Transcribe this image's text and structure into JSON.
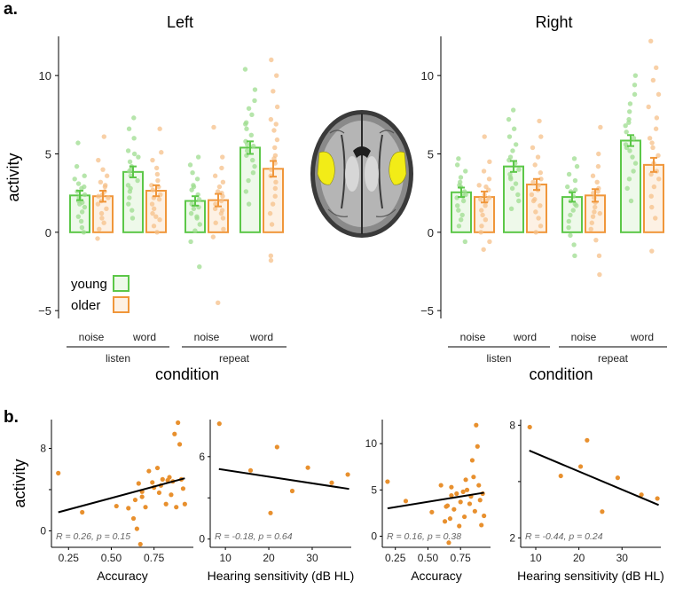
{
  "figure": {
    "panel_a_label": "a.",
    "panel_b_label": "b.",
    "brain_caption": ""
  },
  "colors": {
    "young": "#5cc748",
    "older": "#f0963a",
    "young_fill": "#eef9ea",
    "older_fill": "#fdf1e4",
    "young_dot": "#9ddc8f",
    "older_dot": "#f5c08a",
    "scatter_dot": "#e8902e",
    "roi": "#f2ec17"
  },
  "chart_data": [
    {
      "id": "left",
      "type": "bar",
      "title": "Left",
      "ylabel": "activity",
      "xlabel": "condition",
      "ylim": [
        -5.5,
        12.5
      ],
      "yticks": [
        -5,
        0,
        5,
        10
      ],
      "categories": [
        "noise",
        "word",
        "noise",
        "word"
      ],
      "groups": [
        {
          "label": "listen",
          "span": [
            0,
            1
          ]
        },
        {
          "label": "repeat",
          "span": [
            2,
            3
          ]
        }
      ],
      "legend": {
        "position": "bottom-left",
        "entries": [
          "young",
          "older"
        ]
      },
      "series": [
        {
          "name": "young",
          "values": [
            2.35,
            3.85,
            2.0,
            5.4
          ],
          "errors": [
            0.3,
            0.35,
            0.3,
            0.4
          ],
          "points": [
            [
              5.7,
              4.2,
              3.6,
              3.1,
              2.8,
              2.6,
              2.4,
              2.2,
              2.0,
              1.8,
              1.6,
              1.3,
              1.0,
              0.7,
              0.3,
              3.4,
              2.9,
              1.9,
              0.0
            ],
            [
              7.3,
              6.6,
              6.0,
              5.2,
              4.8,
              4.5,
              4.2,
              3.9,
              3.6,
              3.3,
              3.0,
              2.6,
              2.2,
              1.8,
              1.4,
              0.9,
              5.0,
              4.0,
              2.8
            ],
            [
              4.8,
              4.3,
              3.8,
              3.4,
              3.0,
              2.7,
              2.4,
              2.1,
              1.8,
              1.5,
              1.2,
              0.9,
              0.5,
              0.1,
              -0.6,
              -2.2,
              2.9,
              1.6,
              1.0
            ],
            [
              10.4,
              9.1,
              8.4,
              7.9,
              7.5,
              7.0,
              6.6,
              6.2,
              5.8,
              5.5,
              5.2,
              4.9,
              4.6,
              4.2,
              3.8,
              3.3,
              2.6,
              1.8,
              6.9,
              5.6
            ]
          ]
        },
        {
          "name": "older",
          "values": [
            2.3,
            2.65,
            2.05,
            4.05
          ],
          "errors": [
            0.35,
            0.35,
            0.4,
            0.5
          ],
          "points": [
            [
              6.1,
              4.6,
              4.0,
              3.6,
              3.2,
              2.9,
              2.6,
              2.4,
              2.2,
              2.0,
              1.8,
              1.5,
              1.2,
              0.9,
              0.6,
              0.2,
              -0.4,
              3.0,
              2.3
            ],
            [
              6.6,
              5.1,
              4.6,
              4.1,
              3.7,
              3.3,
              3.0,
              2.7,
              2.4,
              2.1,
              1.8,
              1.5,
              1.2,
              0.8,
              0.4,
              0.0,
              2.9,
              2.2,
              1.0
            ],
            [
              6.7,
              4.8,
              4.1,
              3.6,
              3.2,
              2.9,
              2.6,
              2.3,
              2.0,
              1.8,
              1.5,
              1.2,
              0.9,
              0.6,
              0.2,
              -0.3,
              -4.5,
              2.5,
              1.4
            ],
            [
              11.0,
              10.0,
              9.0,
              8.0,
              7.2,
              6.5,
              5.9,
              5.4,
              4.9,
              4.4,
              4.0,
              3.6,
              3.2,
              2.8,
              2.3,
              1.8,
              1.2,
              0.5,
              -1.5,
              -1.8,
              6.9,
              4.7
            ]
          ]
        }
      ]
    },
    {
      "id": "right",
      "type": "bar",
      "title": "Right",
      "ylabel": "",
      "xlabel": "condition",
      "ylim": [
        -5.5,
        12.5
      ],
      "yticks": [
        -5,
        0,
        5,
        10
      ],
      "categories": [
        "noise",
        "word",
        "noise",
        "word"
      ],
      "groups": [
        {
          "label": "listen",
          "span": [
            0,
            1
          ]
        },
        {
          "label": "repeat",
          "span": [
            2,
            3
          ]
        }
      ],
      "series": [
        {
          "name": "young",
          "values": [
            2.55,
            4.2,
            2.25,
            5.85
          ],
          "errors": [
            0.3,
            0.35,
            0.3,
            0.35
          ],
          "points": [
            [
              4.7,
              4.3,
              3.9,
              3.5,
              3.2,
              2.9,
              2.6,
              2.4,
              2.2,
              2.0,
              1.7,
              1.4,
              1.1,
              0.8,
              0.4,
              -0.6,
              3.0,
              2.3
            ],
            [
              7.8,
              7.2,
              6.6,
              6.1,
              5.6,
              5.2,
              4.8,
              4.4,
              4.0,
              3.7,
              3.4,
              3.1,
              2.8,
              2.4,
              2.0,
              1.5,
              4.6,
              3.5
            ],
            [
              4.7,
              4.2,
              3.7,
              3.3,
              2.9,
              2.6,
              2.3,
              2.0,
              1.7,
              1.4,
              1.1,
              0.7,
              0.3,
              -0.2,
              -0.8,
              -1.5,
              2.7,
              1.8
            ],
            [
              10.0,
              9.4,
              8.8,
              8.2,
              7.7,
              7.2,
              6.8,
              6.4,
              6.0,
              5.6,
              5.2,
              4.8,
              4.4,
              3.9,
              3.4,
              2.8,
              2.0,
              7.0,
              5.4
            ]
          ]
        },
        {
          "name": "older",
          "values": [
            2.25,
            3.05,
            2.35,
            4.3
          ],
          "errors": [
            0.35,
            0.35,
            0.4,
            0.45
          ],
          "points": [
            [
              6.1,
              4.5,
              3.9,
              3.4,
              3.0,
              2.7,
              2.4,
              2.2,
              2.0,
              1.7,
              1.4,
              1.1,
              0.8,
              0.4,
              0.0,
              -0.6,
              -1.1,
              2.9,
              2.1
            ],
            [
              7.1,
              6.1,
              5.4,
              4.8,
              4.3,
              3.8,
              3.4,
              3.0,
              2.7,
              2.4,
              2.1,
              1.7,
              1.3,
              0.9,
              0.4,
              0.0,
              3.2,
              2.0
            ],
            [
              6.7,
              5.0,
              4.2,
              3.6,
              3.2,
              2.8,
              2.5,
              2.2,
              1.9,
              1.6,
              1.3,
              1.0,
              0.6,
              0.2,
              -0.5,
              -1.5,
              -2.7,
              2.6,
              1.2
            ],
            [
              12.2,
              10.5,
              9.7,
              8.8,
              8.0,
              7.3,
              6.6,
              6.0,
              5.4,
              4.9,
              4.4,
              3.9,
              3.4,
              2.9,
              2.3,
              1.6,
              0.9,
              -1.2,
              5.7,
              3.7
            ]
          ]
        }
      ]
    },
    {
      "id": "b1",
      "type": "scatter",
      "xlabel": "Accuracy",
      "ylabel": "activity",
      "xlim": [
        0.15,
        0.98
      ],
      "ylim": [
        -1.6,
        10.8
      ],
      "xticks": [
        0.25,
        0.5,
        0.75
      ],
      "xticklabels": [
        "0.25",
        "0.50",
        "0.75"
      ],
      "yticks": [
        0,
        4,
        8
      ],
      "yticklabels": [
        "0",
        "",
        "8"
      ],
      "annotation": "R = 0.26, p = 0.15",
      "fit": {
        "x": [
          0.19,
          0.93
        ],
        "y": [
          1.8,
          5.1
        ]
      },
      "x": [
        0.19,
        0.33,
        0.53,
        0.6,
        0.63,
        0.64,
        0.65,
        0.66,
        0.67,
        0.68,
        0.68,
        0.7,
        0.72,
        0.74,
        0.75,
        0.77,
        0.78,
        0.79,
        0.8,
        0.82,
        0.83,
        0.84,
        0.85,
        0.86,
        0.87,
        0.88,
        0.89,
        0.9,
        0.91,
        0.92,
        0.93
      ],
      "y": [
        5.6,
        1.8,
        2.4,
        2.2,
        1.2,
        3.0,
        0.2,
        4.6,
        -1.3,
        3.8,
        3.3,
        2.3,
        5.8,
        4.7,
        4.2,
        6.1,
        3.7,
        4.4,
        5.0,
        2.6,
        4.9,
        5.2,
        3.5,
        4.8,
        9.4,
        2.3,
        10.5,
        8.4,
        5.0,
        4.1,
        2.6
      ]
    },
    {
      "id": "b2",
      "type": "scatter",
      "xlabel": "Hearing sensitivity (dB HL)",
      "ylabel": "",
      "xlim": [
        6.5,
        39
      ],
      "ylim": [
        -0.6,
        8.7
      ],
      "xticks": [
        10,
        20,
        30
      ],
      "xticklabels": [
        "10",
        "20",
        "30"
      ],
      "yticks": [
        0,
        3,
        6
      ],
      "yticklabels": [
        "0",
        "",
        "6"
      ],
      "annotation": "R = -0.18, p = 0.64",
      "fit": {
        "x": [
          8.5,
          38.5
        ],
        "y": [
          5.1,
          3.65
        ]
      },
      "x": [
        8.6,
        15.8,
        20.4,
        21.9,
        25.4,
        29.0,
        34.5,
        38.2
      ],
      "y": [
        8.4,
        5.0,
        1.9,
        6.7,
        3.5,
        5.2,
        4.1,
        4.7
      ]
    },
    {
      "id": "b3",
      "type": "scatter",
      "xlabel": "Accuracy",
      "ylabel": "",
      "xlim": [
        0.15,
        0.98
      ],
      "ylim": [
        -1.2,
        12.6
      ],
      "xticks": [
        0.25,
        0.5,
        0.75
      ],
      "xticklabels": [
        "0.25",
        "0.50",
        "0.75"
      ],
      "yticks": [
        0,
        5,
        10
      ],
      "yticklabels": [
        "0",
        "5",
        "10"
      ],
      "annotation": "R = 0.16, p = 0.38",
      "fit": {
        "x": [
          0.19,
          0.93
        ],
        "y": [
          3.0,
          4.7
        ]
      },
      "x": [
        0.19,
        0.33,
        0.53,
        0.6,
        0.63,
        0.64,
        0.65,
        0.66,
        0.67,
        0.68,
        0.68,
        0.7,
        0.72,
        0.74,
        0.75,
        0.77,
        0.78,
        0.79,
        0.8,
        0.82,
        0.83,
        0.84,
        0.85,
        0.86,
        0.87,
        0.88,
        0.89,
        0.9,
        0.91,
        0.92,
        0.93
      ],
      "y": [
        5.9,
        3.8,
        2.6,
        5.5,
        1.6,
        3.2,
        3.3,
        -0.7,
        1.9,
        4.4,
        5.3,
        2.9,
        4.6,
        1.1,
        3.7,
        4.8,
        2.1,
        6.1,
        5.0,
        3.5,
        4.3,
        8.2,
        6.4,
        2.7,
        12.0,
        9.7,
        5.5,
        3.9,
        1.2,
        4.6,
        2.2
      ]
    },
    {
      "id": "b4",
      "type": "scatter",
      "xlabel": "Hearing sensitivity (dB HL)",
      "ylabel": "",
      "xlim": [
        6.5,
        39
      ],
      "ylim": [
        1.5,
        8.3
      ],
      "xticks": [
        10,
        20,
        30
      ],
      "xticklabels": [
        "10",
        "20",
        "30"
      ],
      "yticks": [
        2,
        5,
        8
      ],
      "yticklabels": [
        "2",
        "",
        "8"
      ],
      "annotation": "R = -0.44, p = 0.24",
      "fit": {
        "x": [
          8.5,
          38.5
        ],
        "y": [
          6.65,
          3.75
        ]
      },
      "x": [
        8.6,
        15.8,
        20.4,
        21.9,
        25.4,
        29.0,
        34.5,
        38.2
      ],
      "y": [
        7.9,
        5.3,
        5.8,
        7.2,
        3.4,
        5.2,
        4.3,
        4.1
      ]
    }
  ]
}
